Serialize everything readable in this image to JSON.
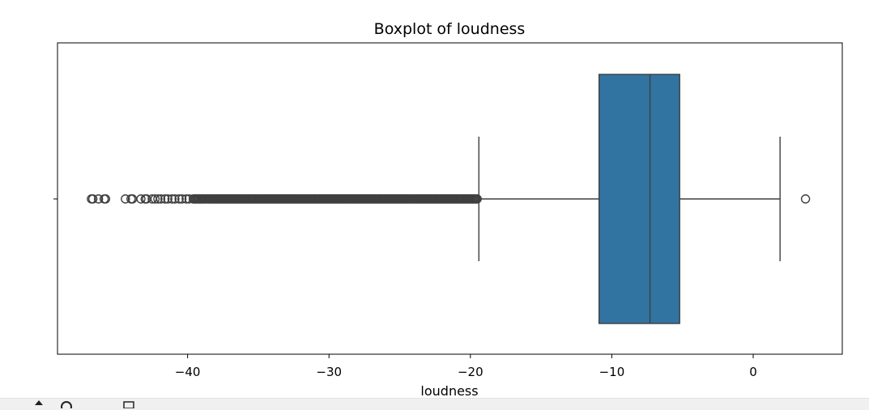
{
  "chart_data": {
    "type": "boxplot",
    "title": "Boxplot of loudness",
    "xlabel": "loudness",
    "ylabel": "",
    "xlim": [
      -49.2,
      6.3
    ],
    "xticks": [
      -40,
      -30,
      -20,
      -10,
      0
    ],
    "xtick_labels": [
      "−40",
      "−30",
      "−20",
      "−10",
      "0"
    ],
    "box": {
      "q1": -10.9,
      "median": -7.3,
      "q3": -5.2,
      "whisker_low": -19.4,
      "whisker_high": 1.9
    },
    "outliers": [
      -46.8,
      -46.7,
      -46.3,
      -45.9,
      -45.8,
      -44.4,
      -44.0,
      -43.9,
      -43.3,
      -43.0,
      -42.9,
      -42.5,
      -42.3,
      -42.1,
      -41.9,
      -41.6,
      -41.4,
      -41.1,
      -40.9,
      -40.6,
      -40.4,
      -40.1,
      -39.9,
      3.7
    ],
    "outlier_dense_range": [
      -39.6,
      -19.5
    ],
    "colors": {
      "box": "#3274a1",
      "line": "#3f3f3f",
      "axis": "#000000"
    },
    "grid": false
  }
}
